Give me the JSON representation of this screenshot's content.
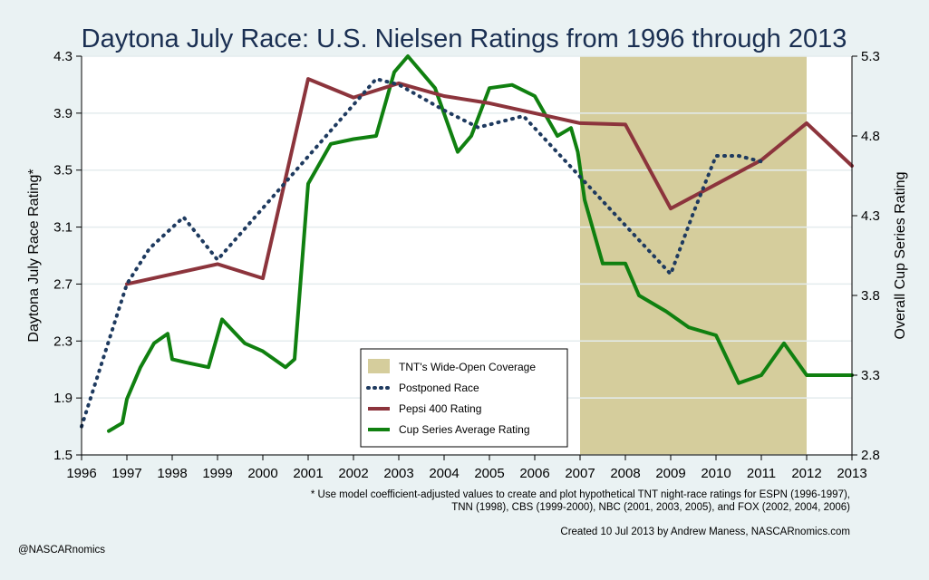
{
  "chart_data": {
    "type": "line",
    "title": "Daytona July Race: U.S. Nielsen Ratings from 1996 through 2013",
    "ylabel": "Daytona July Race Rating*",
    "y2label": "Overall Cup Series Rating",
    "xlim": [
      1996,
      2013
    ],
    "ylim": [
      1.5,
      4.3
    ],
    "y2lim": [
      2.8,
      5.3
    ],
    "x_ticks": [
      "1996",
      "1997",
      "1998",
      "1999",
      "2000",
      "2001",
      "2002",
      "2003",
      "2004",
      "2005",
      "2006",
      "2007",
      "2008",
      "2009",
      "2010",
      "2011",
      "2012",
      "2013"
    ],
    "y_ticks": [
      "1.5",
      "1.9",
      "2.3",
      "2.7",
      "3.1",
      "3.5",
      "3.9",
      "4.3"
    ],
    "y2_ticks": [
      "2.8",
      "3.3",
      "3.8",
      "4.3",
      "4.8",
      "5.3"
    ],
    "grid": true,
    "legend_position": "bottom-center",
    "shaded_region": {
      "name": "TNT's Wide-Open Coverage",
      "x": [
        2007,
        2012
      ],
      "color": "#d5cd9c"
    },
    "series": [
      {
        "name": "Postponed Race",
        "axis": "left",
        "style": "dotted",
        "color": "#1e3a5f",
        "points": [
          [
            1996,
            1.7
          ],
          [
            1996.5,
            2.2
          ],
          [
            1997,
            2.7
          ],
          [
            1997.5,
            2.95
          ],
          [
            1998.25,
            3.17
          ],
          [
            1999,
            2.87
          ],
          [
            2002.5,
            4.14
          ],
          [
            2003,
            4.1
          ],
          [
            2004,
            3.92
          ],
          [
            2004.75,
            3.8
          ],
          [
            2005.75,
            3.88
          ],
          [
            2009,
            2.77
          ],
          [
            2009.5,
            3.2
          ],
          [
            2010,
            3.6
          ],
          [
            2010.5,
            3.6
          ],
          [
            2011,
            3.56
          ]
        ]
      },
      {
        "name": "Pepsi 400 Rating",
        "axis": "left",
        "style": "solid",
        "color": "#8c343c",
        "points": [
          [
            1997,
            2.7
          ],
          [
            1999,
            2.84
          ],
          [
            2000,
            2.74
          ],
          [
            2001,
            4.14
          ],
          [
            2002,
            4.01
          ],
          [
            2003,
            4.11
          ],
          [
            2004,
            4.02
          ],
          [
            2005,
            3.97
          ],
          [
            2006,
            3.9
          ],
          [
            2007,
            3.83
          ],
          [
            2008,
            3.82
          ],
          [
            2009,
            3.23
          ],
          [
            2011,
            3.57
          ],
          [
            2012,
            3.83
          ],
          [
            2013,
            3.53
          ]
        ]
      },
      {
        "name": "Cup Series Average Rating",
        "axis": "right",
        "style": "solid",
        "color": "#108010",
        "points": [
          [
            1996.6,
            2.95
          ],
          [
            1996.9,
            3.0
          ],
          [
            1997.0,
            3.15
          ],
          [
            1997.3,
            3.35
          ],
          [
            1997.6,
            3.5
          ],
          [
            1997.9,
            3.56
          ],
          [
            1998.0,
            3.4
          ],
          [
            1998.3,
            3.38
          ],
          [
            1998.8,
            3.35
          ],
          [
            1999.1,
            3.65
          ],
          [
            1999.6,
            3.5
          ],
          [
            2000.0,
            3.45
          ],
          [
            2000.5,
            3.35
          ],
          [
            2000.7,
            3.4
          ],
          [
            2001.0,
            4.5
          ],
          [
            2001.5,
            4.75
          ],
          [
            2002.0,
            4.78
          ],
          [
            2002.5,
            4.8
          ],
          [
            2002.9,
            5.2
          ],
          [
            2003.2,
            5.3
          ],
          [
            2003.8,
            5.1
          ],
          [
            2004.3,
            4.7
          ],
          [
            2004.6,
            4.8
          ],
          [
            2005.0,
            5.1
          ],
          [
            2005.5,
            5.12
          ],
          [
            2006.0,
            5.05
          ],
          [
            2006.5,
            4.8
          ],
          [
            2006.8,
            4.85
          ],
          [
            2006.95,
            4.7
          ],
          [
            2007.1,
            4.4
          ],
          [
            2007.5,
            4.0
          ],
          [
            2008.0,
            4.0
          ],
          [
            2008.3,
            3.8
          ],
          [
            2008.9,
            3.7
          ],
          [
            2009.4,
            3.6
          ],
          [
            2010.0,
            3.55
          ],
          [
            2010.5,
            3.25
          ],
          [
            2011.0,
            3.3
          ],
          [
            2011.5,
            3.5
          ],
          [
            2012.0,
            3.3
          ],
          [
            2013.0,
            3.3
          ]
        ]
      }
    ]
  },
  "footnotes": {
    "line1": "* Use model coefficient-adjusted values to create and plot hypothetical TNT night-race ratings for ESPN (1996-1997),",
    "line2": "TNN (1998), CBS (1999-2000), NBC (2001, 2003, 2005), and FOX (2002, 2004, 2006)",
    "credit": "Created 10 Jul 2013 by Andrew Maness, NASCARnomics.com",
    "handle": "@NASCARnomics"
  }
}
